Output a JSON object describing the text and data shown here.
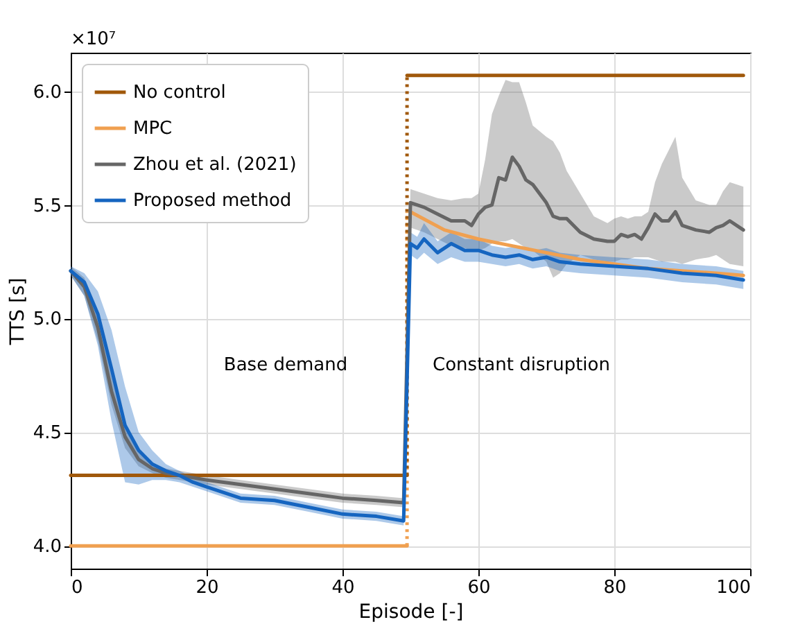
{
  "chart_data": {
    "type": "line",
    "xlabel": "Episode [-]",
    "ylabel": "TTS [s]",
    "xlim": [
      0,
      100
    ],
    "xticks": [
      0,
      20,
      40,
      60,
      80,
      100
    ],
    "ylim": [
      3.9,
      6.17
    ],
    "yticks": [
      {
        "value": 4.0,
        "label": "4.0"
      },
      {
        "value": 4.5,
        "label": "4.5"
      },
      {
        "value": 5.0,
        "label": "5.0"
      },
      {
        "value": 5.5,
        "label": "5.5"
      },
      {
        "value": 6.0,
        "label": "6.0"
      }
    ],
    "grid": true,
    "legend": "top left",
    "line_style": "solid",
    "marker": "none",
    "annotations": [
      "×10⁷",
      "Base demand",
      "Constant disruption"
    ],
    "series": [
      {
        "color": "#f0a050",
        "line_style": "dotted",
        "x": [
          49.5,
          49.5
        ],
        "values": [
          4.0,
          5.47
        ]
      },
      {
        "color": "#a0580a",
        "line_style": "dotted",
        "x": [
          49.5,
          49.5
        ],
        "values": [
          4.31,
          6.07
        ]
      },
      {
        "name": "No control",
        "color": "#a0580a",
        "x": [
          0,
          49.5
        ],
        "values": [
          4.31,
          4.31
        ]
      },
      {
        "color": "#a0580a",
        "x": [
          49.5,
          99
        ],
        "values": [
          6.07,
          6.07
        ]
      },
      {
        "name": "MPC",
        "color": "#f0a050",
        "x": [
          0,
          49.5
        ],
        "values": [
          4.0,
          4.0
        ]
      },
      {
        "color": "#f0a050",
        "x": [
          50,
          55,
          60,
          65,
          70,
          75,
          80,
          85,
          90,
          95,
          99
        ],
        "values": [
          5.47,
          5.39,
          5.35,
          5.32,
          5.29,
          5.26,
          5.24,
          5.22,
          5.21,
          5.2,
          5.19
        ]
      },
      {
        "name": "Zhou et al. (2021)",
        "color": "#666666",
        "x": [
          0,
          2,
          4,
          6,
          8,
          10,
          12,
          14,
          16,
          18,
          20,
          25,
          30,
          35,
          40,
          45,
          49,
          50,
          52,
          54,
          56,
          58,
          59,
          60,
          61,
          62,
          63,
          64,
          65,
          66,
          67,
          68,
          70,
          71,
          72,
          73,
          75,
          77,
          79,
          80,
          81,
          82,
          83,
          84,
          85,
          86,
          87,
          88,
          89,
          90,
          92,
          94,
          95,
          96,
          97,
          99
        ],
        "values": [
          5.21,
          5.14,
          4.96,
          4.68,
          4.48,
          4.38,
          4.34,
          4.32,
          4.31,
          4.3,
          4.29,
          4.27,
          4.25,
          4.23,
          4.21,
          4.2,
          4.19,
          5.51,
          5.49,
          5.46,
          5.43,
          5.43,
          5.41,
          5.46,
          5.49,
          5.5,
          5.62,
          5.61,
          5.71,
          5.67,
          5.61,
          5.59,
          5.51,
          5.45,
          5.44,
          5.44,
          5.38,
          5.35,
          5.34,
          5.34,
          5.37,
          5.36,
          5.37,
          5.35,
          5.4,
          5.46,
          5.43,
          5.43,
          5.47,
          5.41,
          5.39,
          5.38,
          5.4,
          5.41,
          5.43,
          5.39
        ],
        "lower": [
          5.19,
          5.1,
          4.9,
          4.62,
          4.43,
          4.35,
          4.32,
          4.3,
          4.29,
          4.28,
          4.27,
          4.25,
          4.23,
          4.21,
          4.19,
          4.18,
          4.17,
          5.4,
          5.38,
          5.35,
          5.32,
          5.31,
          5.3,
          5.3,
          5.31,
          5.33,
          5.34,
          5.34,
          5.35,
          5.33,
          5.31,
          5.3,
          5.25,
          5.18,
          5.2,
          5.24,
          5.28,
          5.26,
          5.25,
          5.25,
          5.26,
          5.26,
          5.27,
          5.27,
          5.27,
          5.26,
          5.25,
          5.25,
          5.25,
          5.24,
          5.26,
          5.27,
          5.28,
          5.26,
          5.24,
          5.23
        ],
        "upper": [
          5.23,
          5.18,
          5.02,
          4.75,
          4.53,
          4.41,
          4.36,
          4.34,
          4.33,
          4.32,
          4.31,
          4.29,
          4.27,
          4.25,
          4.23,
          4.22,
          4.21,
          5.57,
          5.55,
          5.53,
          5.52,
          5.53,
          5.53,
          5.55,
          5.7,
          5.9,
          5.98,
          6.05,
          6.04,
          6.04,
          5.95,
          5.85,
          5.8,
          5.78,
          5.73,
          5.65,
          5.55,
          5.45,
          5.42,
          5.44,
          5.45,
          5.44,
          5.45,
          5.45,
          5.47,
          5.6,
          5.68,
          5.74,
          5.8,
          5.62,
          5.52,
          5.5,
          5.5,
          5.56,
          5.6,
          5.58
        ]
      },
      {
        "name": "Proposed method",
        "color": "#1565c0",
        "x": [
          0,
          2,
          4,
          6,
          8,
          10,
          12,
          14,
          16,
          18,
          20,
          25,
          30,
          35,
          40,
          45,
          49,
          50,
          51,
          52,
          54,
          56,
          58,
          60,
          62,
          64,
          66,
          68,
          70,
          72,
          75,
          80,
          85,
          90,
          95,
          99
        ],
        "values": [
          5.21,
          5.16,
          5.02,
          4.78,
          4.53,
          4.42,
          4.36,
          4.33,
          4.31,
          4.28,
          4.26,
          4.21,
          4.2,
          4.17,
          4.14,
          4.13,
          4.11,
          5.33,
          5.31,
          5.35,
          5.29,
          5.33,
          5.3,
          5.3,
          5.28,
          5.27,
          5.28,
          5.26,
          5.27,
          5.25,
          5.24,
          5.23,
          5.22,
          5.2,
          5.19,
          5.17
        ],
        "lower": [
          5.19,
          5.1,
          4.88,
          4.55,
          4.28,
          4.27,
          4.29,
          4.29,
          4.28,
          4.26,
          4.24,
          4.19,
          4.18,
          4.15,
          4.12,
          4.11,
          4.09,
          5.28,
          5.26,
          5.29,
          5.24,
          5.27,
          5.25,
          5.25,
          5.24,
          5.23,
          5.24,
          5.22,
          5.23,
          5.21,
          5.2,
          5.19,
          5.18,
          5.16,
          5.15,
          5.13
        ],
        "upper": [
          5.23,
          5.2,
          5.12,
          4.95,
          4.7,
          4.5,
          4.42,
          4.36,
          4.33,
          4.3,
          4.28,
          4.23,
          4.22,
          4.19,
          4.16,
          4.15,
          4.13,
          5.38,
          5.36,
          5.42,
          5.34,
          5.38,
          5.35,
          5.35,
          5.32,
          5.31,
          5.32,
          5.3,
          5.31,
          5.29,
          5.28,
          5.27,
          5.26,
          5.24,
          5.23,
          5.21
        ]
      }
    ]
  }
}
